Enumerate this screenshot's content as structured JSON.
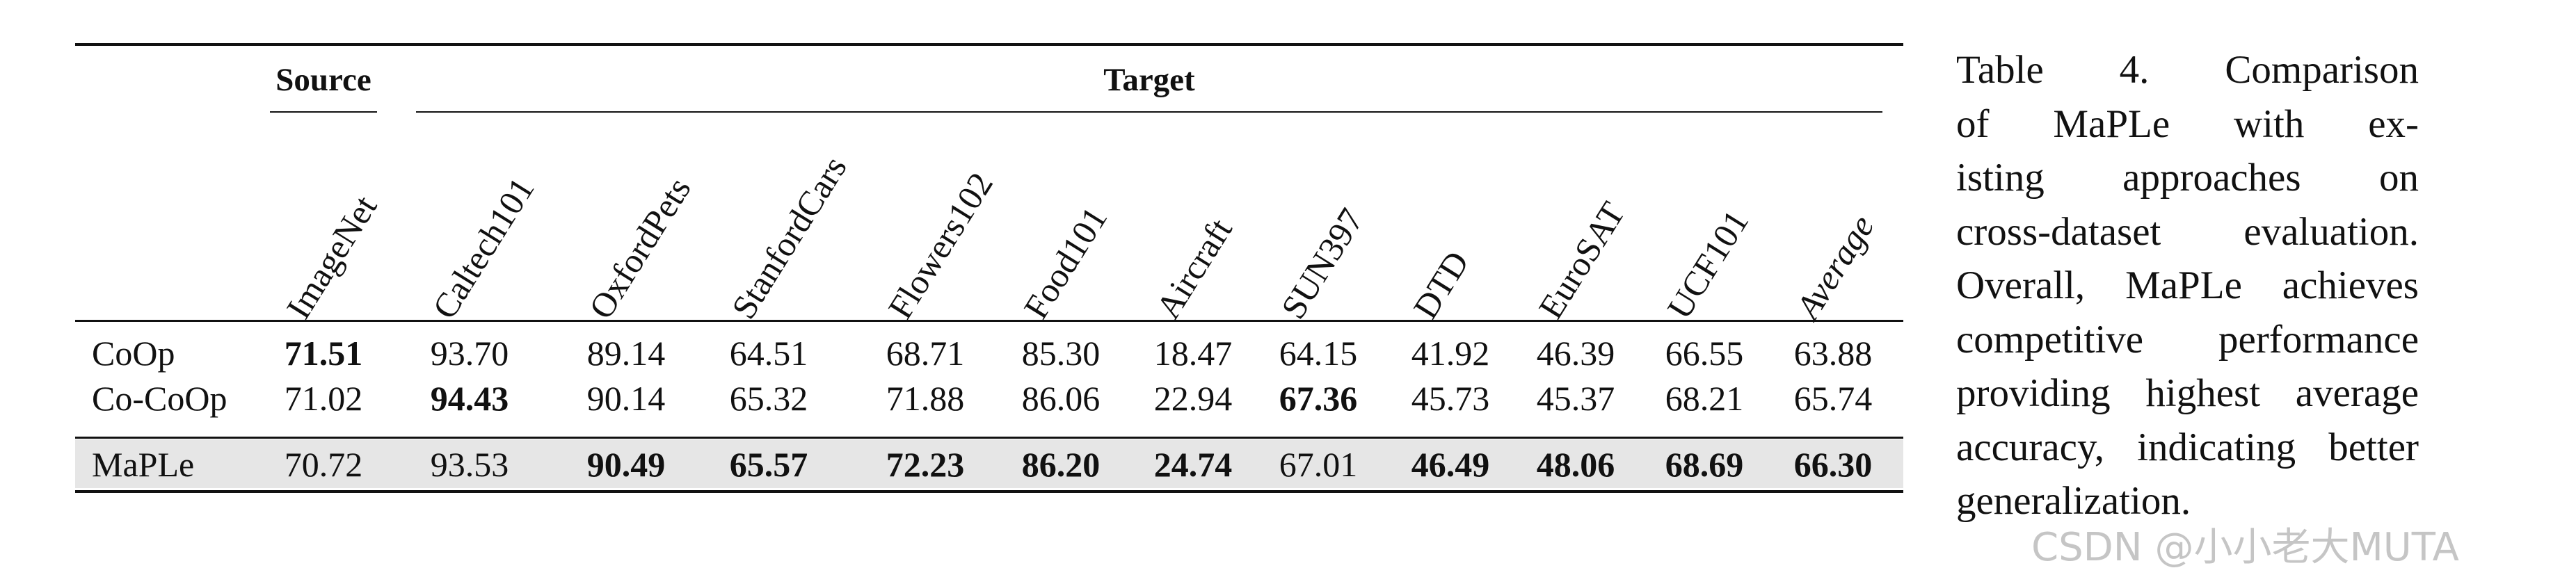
{
  "table": {
    "group_headers": {
      "source": "Source",
      "target": "Target"
    },
    "columns": [
      {
        "label": "ImageNet",
        "italic": false
      },
      {
        "label": "Caltech101",
        "italic": false
      },
      {
        "label": "OxfordPets",
        "italic": false
      },
      {
        "label": "StanfordCars",
        "italic": false
      },
      {
        "label": "Flowers102",
        "italic": false
      },
      {
        "label": "Food101",
        "italic": false
      },
      {
        "label": "Aircraft",
        "italic": false
      },
      {
        "label": "SUN397",
        "italic": false
      },
      {
        "label": "DTD",
        "italic": false
      },
      {
        "label": "EuroSAT",
        "italic": false
      },
      {
        "label": "UCF101",
        "italic": false
      },
      {
        "label": "Average",
        "italic": true
      }
    ],
    "rows": [
      {
        "method": "CoOp",
        "highlight": false,
        "values": [
          "71.51",
          "93.70",
          "89.14",
          "64.51",
          "68.71",
          "85.30",
          "18.47",
          "64.15",
          "41.92",
          "46.39",
          "66.55",
          "63.88"
        ],
        "bold": [
          true,
          false,
          false,
          false,
          false,
          false,
          false,
          false,
          false,
          false,
          false,
          false
        ]
      },
      {
        "method": "Co-CoOp",
        "highlight": false,
        "values": [
          "71.02",
          "94.43",
          "90.14",
          "65.32",
          "71.88",
          "86.06",
          "22.94",
          "67.36",
          "45.73",
          "45.37",
          "68.21",
          "65.74"
        ],
        "bold": [
          false,
          true,
          false,
          false,
          false,
          false,
          false,
          true,
          false,
          false,
          false,
          false
        ]
      },
      {
        "method": "MaPLe",
        "highlight": true,
        "values": [
          "70.72",
          "93.53",
          "90.49",
          "65.57",
          "72.23",
          "86.20",
          "24.74",
          "67.01",
          "46.49",
          "48.06",
          "68.69",
          "66.30"
        ],
        "bold": [
          false,
          false,
          true,
          true,
          true,
          true,
          true,
          false,
          true,
          true,
          true,
          true
        ]
      }
    ]
  },
  "caption": {
    "lines": [
      "Table 4. Comparison",
      "of MaPLe with ex-",
      "isting approaches on",
      "cross-dataset evaluation.",
      "Overall, MaPLe achieves",
      "competitive performance",
      "providing highest average",
      "accuracy, indicating better",
      "generalization."
    ]
  },
  "watermark": "CSDN @小小老大MUTA",
  "colors": {
    "highlight_row": "#e6e6e6",
    "rule": "#111111",
    "watermark": "#969696"
  }
}
